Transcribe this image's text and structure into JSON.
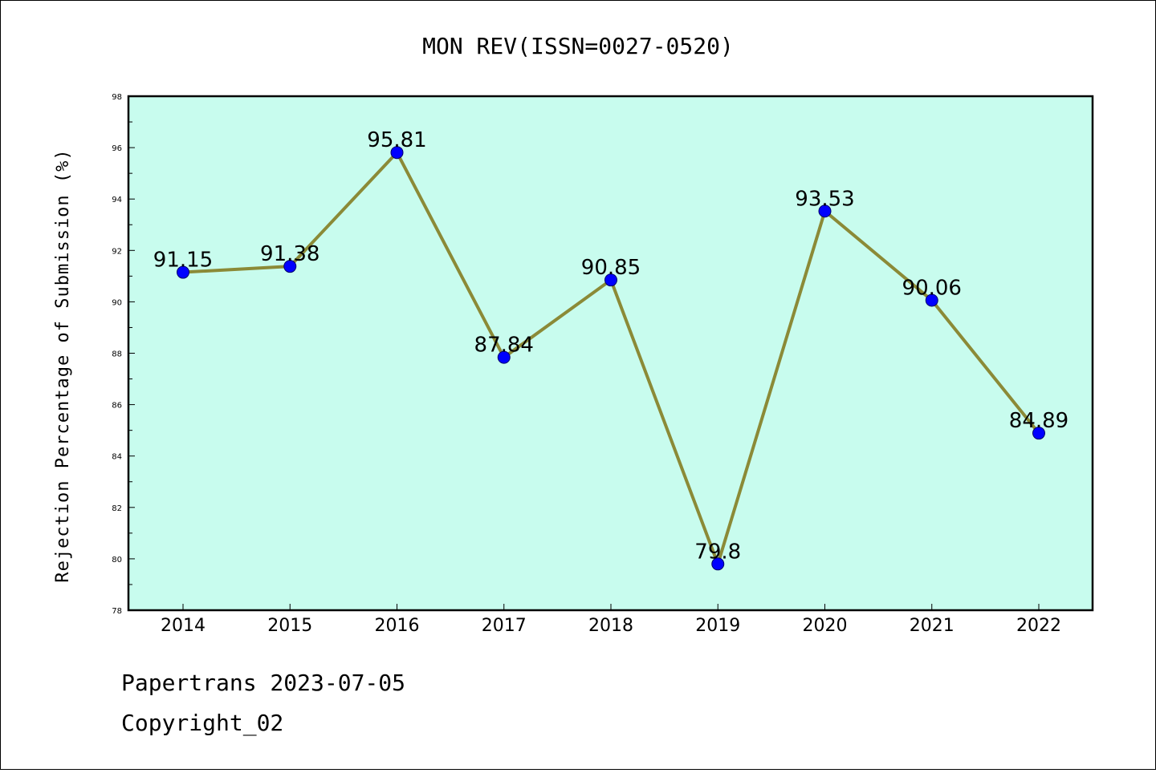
{
  "chart_data": {
    "type": "line",
    "title": "MON REV(ISSN=0027-0520)",
    "ylabel": "Rejection Percentage of Submission (%)",
    "xlabel": "",
    "categories": [
      "2014",
      "2015",
      "2016",
      "2017",
      "2018",
      "2019",
      "2020",
      "2021",
      "2022"
    ],
    "values": [
      91.15,
      91.38,
      95.81,
      87.84,
      90.85,
      79.8,
      93.53,
      90.06,
      84.89
    ],
    "data_labels": [
      "91.15",
      "91.38",
      "95.81",
      "87.84",
      "90.85",
      "79.8",
      "93.53",
      "90.06",
      "84.89"
    ],
    "ylim": [
      78,
      98
    ],
    "yticks": [
      "78",
      "80",
      "82",
      "84",
      "86",
      "88",
      "90",
      "92",
      "94",
      "96",
      "98"
    ],
    "grid": false,
    "legend": "none",
    "colors": {
      "plot_background": "#c8fcee",
      "line": "#8b8a37",
      "marker": "#0000ff"
    }
  },
  "footer": {
    "line1": "Papertrans 2023-07-05",
    "line2": "Copyright_02"
  }
}
